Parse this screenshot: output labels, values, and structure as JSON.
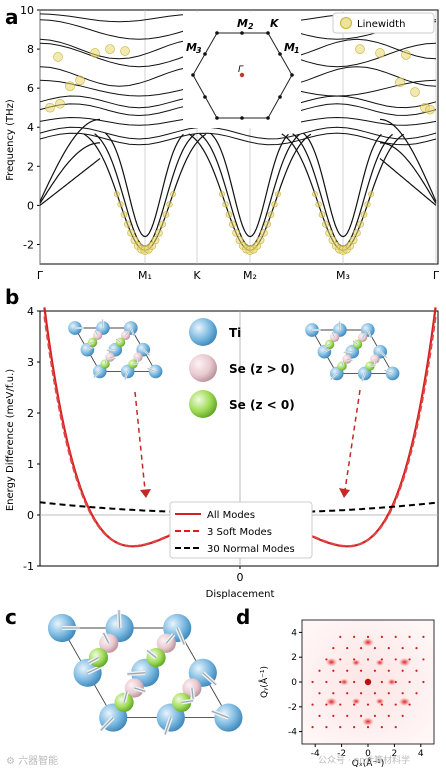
{
  "panels": {
    "a": "a",
    "b": "b",
    "c": "c",
    "d": "d"
  },
  "panel_a": {
    "ylabel": "Frequency (THz)",
    "legend": "Linewidth",
    "bz_labels": {
      "m2": "M",
      "m2_sub": "2",
      "k": "K",
      "m3": "M",
      "m3_sub": "3",
      "m1": "M",
      "m1_sub": "1",
      "gamma": "Γ"
    }
  },
  "panel_b": {
    "ylabel": "Energy Difference (meV/f.u.)",
    "xlabel": "Displacement",
    "atoms": [
      {
        "label": "Ti",
        "color": "#79b8e0"
      },
      {
        "label": "Se (z > 0)",
        "color": "#e8c9d0"
      },
      {
        "label": "Se (z < 0)",
        "color": "#9fdb55"
      }
    ],
    "legend": [
      "All Modes",
      "3 Soft Modes",
      "30 Normal Modes"
    ]
  },
  "panel_d": {
    "xlabel": "Qₓ(Å⁻¹)",
    "ylabel": "Qᵧ(Å⁻¹)"
  },
  "watermarks": {
    "left": "⚙ 六器智能",
    "right": "公众号 · nn计算材料学"
  },
  "chart_data": [
    {
      "type": "line",
      "title": "",
      "xlabel": "",
      "ylabel": "Frequency (THz)",
      "categories": [
        "Γ",
        "M₁",
        "K",
        "M₂",
        "M₃",
        "Γ"
      ],
      "yticks": [
        -2,
        0,
        2,
        4,
        6,
        8,
        10
      ],
      "ylim": [
        -3,
        10
      ],
      "legend": [
        "Linewidth"
      ],
      "soft_mode_min_THz": -2.3
    },
    {
      "type": "line",
      "xlabel": "Displacement",
      "ylabel": "Energy Difference (meV/f.u.)",
      "xticks": [
        0
      ],
      "yticks": [
        -1,
        0,
        1,
        2,
        3,
        4
      ],
      "ylim": [
        -1,
        4
      ],
      "series": [
        {
          "name": "All Modes"
        },
        {
          "name": "3 Soft Modes"
        },
        {
          "name": "30 Normal Modes"
        }
      ],
      "minimum": -0.72
    },
    {
      "type": "heatmap",
      "xlabel": "Qₓ(Å⁻¹)",
      "ylabel": "Qᵧ(Å⁻¹)",
      "xticks": [
        -4,
        -2,
        0,
        2,
        4
      ],
      "yticks": [
        -4,
        -2,
        0,
        2,
        4
      ],
      "xlim": [
        -5,
        5
      ],
      "ylim": [
        -5,
        5
      ]
    }
  ]
}
